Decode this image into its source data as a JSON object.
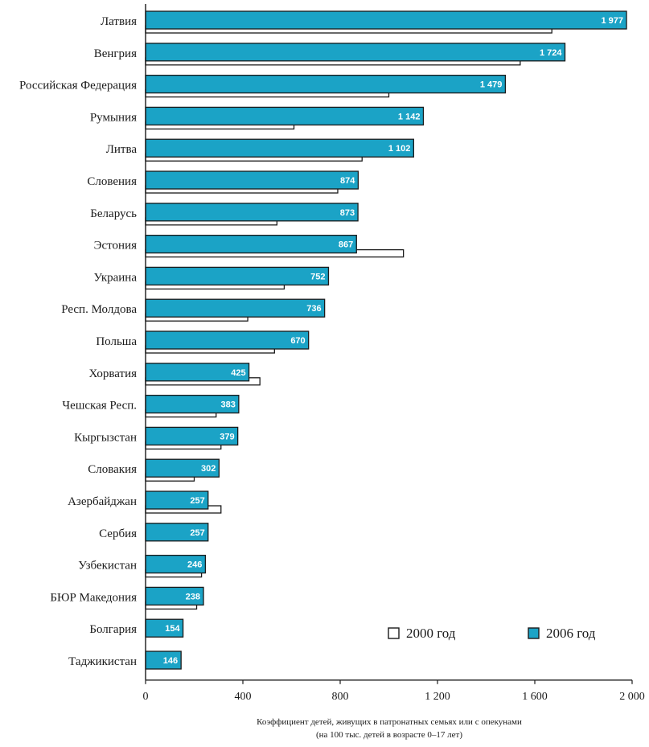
{
  "chart_data": {
    "type": "bar",
    "orientation": "horizontal",
    "categories": [
      "Латвия",
      "Венгрия",
      "Российская Федерация",
      "Румыния",
      "Литва",
      "Словения",
      "Беларусь",
      "Эстония",
      "Украина",
      "Респ. Молдова",
      "Польша",
      "Хорватия",
      "Чешская Респ.",
      "Кыргызстан",
      "Словакия",
      "Азербайджан",
      "Сербия",
      "Узбекистан",
      "БЮР Македония",
      "Болгария",
      "Таджикистан"
    ],
    "series": [
      {
        "name": "2006 год",
        "values": [
          1977,
          1724,
          1479,
          1142,
          1102,
          874,
          873,
          867,
          752,
          736,
          670,
          425,
          383,
          379,
          302,
          257,
          257,
          246,
          238,
          154,
          146
        ],
        "color": "#1ba3c6",
        "labels": [
          "1 977",
          "1 724",
          "1 479",
          "1 142",
          "1 102",
          "874",
          "873",
          "867",
          "752",
          "736",
          "670",
          "425",
          "383",
          "379",
          "302",
          "257",
          "257",
          "246",
          "238",
          "154",
          "146"
        ]
      },
      {
        "name": "2000 год",
        "values": [
          1670,
          1540,
          1000,
          610,
          890,
          790,
          540,
          1060,
          570,
          420,
          530,
          470,
          290,
          310,
          200,
          310,
          null,
          230,
          210,
          null,
          null
        ],
        "color": "#ffffff"
      }
    ],
    "xlim": [
      0,
      2000
    ],
    "xticks": [
      0,
      400,
      800,
      1200,
      1600,
      2000
    ],
    "xtick_labels": [
      "0",
      "400",
      "800",
      "1 200",
      "1 600",
      "2 000"
    ],
    "xlabel": [
      "Коэффициент детей, живущих в патронатных семьях или с опекунами",
      "(на 100 тыс. детей в возрасте 0–17 лет)"
    ],
    "legend_position": "bottom-right",
    "grid": false
  }
}
